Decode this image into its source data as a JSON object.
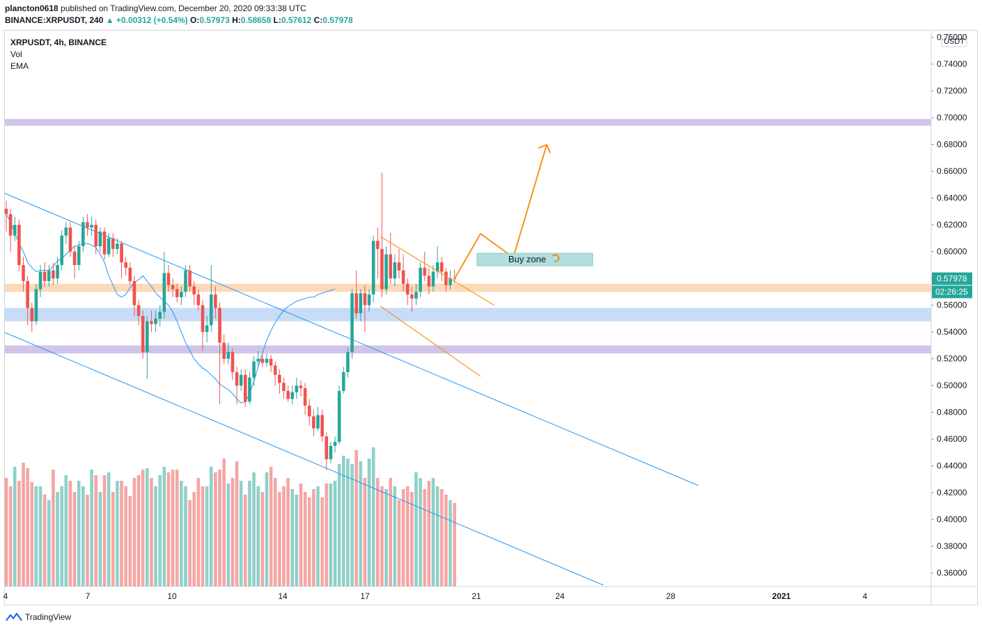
{
  "header": {
    "author": "plancton0618",
    "published": "published on TradingView.com, December 20, 2020 09:33:38 UTC",
    "symbol_line": "BINANCE:XRPUSDT, 240",
    "change": "▲ +0.00312 (+0.54%)",
    "o_label": "O:",
    "o": "0.57973",
    "h_label": "H:",
    "h": "0.58658",
    "l_label": "L:",
    "l": "0.57612",
    "c_label": "C:",
    "c": "0.57978"
  },
  "legend": {
    "symbol": "XRPUSDT, 4h, BINANCE",
    "vol": "Vol",
    "ema": "EMA"
  },
  "footer": {
    "brand": "TradingView"
  },
  "colors": {
    "up": "#26a69a",
    "down": "#ef5350",
    "up_vol": "#8fd0ca",
    "down_vol": "#f4a6a4",
    "trend": "#2196f3",
    "orange": "#f7931a",
    "purple_zone": "#d1c4e9",
    "orange_zone": "#fcd9b8",
    "blue_zone": "#c9dcf7",
    "buy_zone": "#b2dfdb"
  },
  "chart_data": {
    "type": "candlestick",
    "currency": "USDT",
    "ylim": [
      0.35,
      0.765
    ],
    "y_ticks": [
      "0.76000",
      "0.74000",
      "0.72000",
      "0.70000",
      "0.68000",
      "0.66000",
      "0.64000",
      "0.62000",
      "0.60000",
      "0.58000",
      "0.56000",
      "0.54000",
      "0.52000",
      "0.50000",
      "0.48000",
      "0.46000",
      "0.44000",
      "0.42000",
      "0.40000",
      "0.38000",
      "0.36000"
    ],
    "x_ticks": [
      "4",
      "7",
      "10",
      "14",
      "17",
      "21",
      "24",
      "28",
      "2021",
      "4"
    ],
    "last_price": "0.57978",
    "countdown": "02:26:25",
    "candles": [
      [
        0.632,
        0.628,
        0.638,
        0.615
      ],
      [
        0.628,
        0.612,
        0.632,
        0.6
      ],
      [
        0.612,
        0.62,
        0.626,
        0.608
      ],
      [
        0.62,
        0.59,
        0.624,
        0.585
      ],
      [
        0.59,
        0.578,
        0.596,
        0.57
      ],
      [
        0.578,
        0.558,
        0.582,
        0.545
      ],
      [
        0.558,
        0.548,
        0.562,
        0.54
      ],
      [
        0.548,
        0.572,
        0.576,
        0.545
      ],
      [
        0.572,
        0.585,
        0.59,
        0.566
      ],
      [
        0.585,
        0.578,
        0.592,
        0.574
      ],
      [
        0.578,
        0.586,
        0.59,
        0.574
      ],
      [
        0.586,
        0.58,
        0.592,
        0.575
      ],
      [
        0.58,
        0.59,
        0.596,
        0.576
      ],
      [
        0.59,
        0.612,
        0.616,
        0.586
      ],
      [
        0.612,
        0.618,
        0.622,
        0.606
      ],
      [
        0.618,
        0.6,
        0.622,
        0.596
      ],
      [
        0.6,
        0.59,
        0.604,
        0.58
      ],
      [
        0.59,
        0.604,
        0.608,
        0.586
      ],
      [
        0.604,
        0.622,
        0.626,
        0.6
      ],
      [
        0.622,
        0.618,
        0.628,
        0.612
      ],
      [
        0.618,
        0.62,
        0.626,
        0.612
      ],
      [
        0.62,
        0.604,
        0.624,
        0.598
      ],
      [
        0.604,
        0.615,
        0.618,
        0.6
      ],
      [
        0.615,
        0.598,
        0.618,
        0.594
      ],
      [
        0.598,
        0.61,
        0.614,
        0.596
      ],
      [
        0.61,
        0.602,
        0.614,
        0.596
      ],
      [
        0.602,
        0.606,
        0.61,
        0.598
      ],
      [
        0.606,
        0.592,
        0.608,
        0.58
      ],
      [
        0.592,
        0.588,
        0.596,
        0.582
      ],
      [
        0.588,
        0.578,
        0.592,
        0.575
      ],
      [
        0.578,
        0.56,
        0.582,
        0.552
      ],
      [
        0.56,
        0.552,
        0.564,
        0.545
      ],
      [
        0.552,
        0.525,
        0.556,
        0.52
      ],
      [
        0.525,
        0.548,
        0.552,
        0.505
      ],
      [
        0.548,
        0.546,
        0.556,
        0.54
      ],
      [
        0.546,
        0.55,
        0.556,
        0.54
      ],
      [
        0.55,
        0.555,
        0.56,
        0.544
      ],
      [
        0.555,
        0.584,
        0.6,
        0.55
      ],
      [
        0.584,
        0.575,
        0.59,
        0.57
      ],
      [
        0.575,
        0.572,
        0.58,
        0.566
      ],
      [
        0.572,
        0.566,
        0.576,
        0.562
      ],
      [
        0.566,
        0.57,
        0.574,
        0.56
      ],
      [
        0.57,
        0.586,
        0.59,
        0.566
      ],
      [
        0.586,
        0.574,
        0.59,
        0.57
      ],
      [
        0.574,
        0.568,
        0.578,
        0.56
      ],
      [
        0.568,
        0.56,
        0.572,
        0.556
      ],
      [
        0.56,
        0.54,
        0.564,
        0.526
      ],
      [
        0.54,
        0.545,
        0.552,
        0.532
      ],
      [
        0.545,
        0.568,
        0.59,
        0.54
      ],
      [
        0.568,
        0.558,
        0.574,
        0.55
      ],
      [
        0.558,
        0.532,
        0.562,
        0.486
      ],
      [
        0.532,
        0.52,
        0.538,
        0.516
      ],
      [
        0.52,
        0.525,
        0.532,
        0.516
      ],
      [
        0.525,
        0.51,
        0.528,
        0.504
      ],
      [
        0.51,
        0.5,
        0.514,
        0.486
      ],
      [
        0.5,
        0.508,
        0.512,
        0.496
      ],
      [
        0.508,
        0.488,
        0.512,
        0.484
      ],
      [
        0.488,
        0.506,
        0.51,
        0.486
      ],
      [
        0.506,
        0.518,
        0.522,
        0.5
      ],
      [
        0.518,
        0.52,
        0.526,
        0.514
      ],
      [
        0.52,
        0.517,
        0.524,
        0.514
      ],
      [
        0.517,
        0.52,
        0.524,
        0.514
      ],
      [
        0.52,
        0.515,
        0.523,
        0.51
      ],
      [
        0.515,
        0.508,
        0.518,
        0.5
      ],
      [
        0.508,
        0.502,
        0.512,
        0.494
      ],
      [
        0.502,
        0.496,
        0.506,
        0.49
      ],
      [
        0.496,
        0.49,
        0.5,
        0.488
      ],
      [
        0.49,
        0.495,
        0.5,
        0.486
      ],
      [
        0.495,
        0.5,
        0.506,
        0.49
      ],
      [
        0.5,
        0.498,
        0.504,
        0.492
      ],
      [
        0.498,
        0.485,
        0.502,
        0.478
      ],
      [
        0.485,
        0.477,
        0.49,
        0.47
      ],
      [
        0.477,
        0.468,
        0.482,
        0.462
      ],
      [
        0.468,
        0.478,
        0.484,
        0.466
      ],
      [
        0.478,
        0.462,
        0.482,
        0.458
      ],
      [
        0.462,
        0.445,
        0.465,
        0.437
      ],
      [
        0.445,
        0.455,
        0.458,
        0.442
      ],
      [
        0.455,
        0.458,
        0.462,
        0.45
      ],
      [
        0.458,
        0.496,
        0.5,
        0.456
      ],
      [
        0.496,
        0.51,
        0.514,
        0.494
      ],
      [
        0.51,
        0.525,
        0.528,
        0.506
      ],
      [
        0.525,
        0.569,
        0.572,
        0.52
      ],
      [
        0.569,
        0.554,
        0.586,
        0.55
      ],
      [
        0.554,
        0.569,
        0.572,
        0.548
      ],
      [
        0.569,
        0.56,
        0.575,
        0.54
      ],
      [
        0.56,
        0.568,
        0.572,
        0.555
      ],
      [
        0.568,
        0.608,
        0.612,
        0.562
      ],
      [
        0.608,
        0.602,
        0.618,
        0.58
      ],
      [
        0.602,
        0.572,
        0.659,
        0.566
      ],
      [
        0.572,
        0.598,
        0.604,
        0.568
      ],
      [
        0.598,
        0.58,
        0.614,
        0.576
      ],
      [
        0.58,
        0.592,
        0.598,
        0.574
      ],
      [
        0.592,
        0.586,
        0.602,
        0.58
      ],
      [
        0.586,
        0.576,
        0.598,
        0.57
      ],
      [
        0.576,
        0.568,
        0.58,
        0.56
      ],
      [
        0.568,
        0.565,
        0.574,
        0.555
      ],
      [
        0.565,
        0.57,
        0.576,
        0.56
      ],
      [
        0.57,
        0.588,
        0.592,
        0.566
      ],
      [
        0.588,
        0.582,
        0.6,
        0.578
      ],
      [
        0.582,
        0.574,
        0.588,
        0.568
      ],
      [
        0.574,
        0.585,
        0.59,
        0.57
      ],
      [
        0.585,
        0.592,
        0.604,
        0.58
      ],
      [
        0.592,
        0.585,
        0.596,
        0.578
      ],
      [
        0.585,
        0.575,
        0.588,
        0.57
      ],
      [
        0.575,
        0.58,
        0.586,
        0.572
      ],
      [
        0.58,
        0.5798,
        0.5866,
        0.5761
      ]
    ],
    "volume": [
      78,
      72,
      86,
      76,
      89,
      85,
      75,
      72,
      72,
      66,
      62,
      84,
      68,
      72,
      80,
      76,
      68,
      76,
      72,
      66,
      84,
      80,
      68,
      80,
      82,
      68,
      76,
      76,
      72,
      65,
      78,
      80,
      84,
      85,
      78,
      72,
      80,
      86,
      82,
      84,
      84,
      76,
      72,
      62,
      68,
      78,
      72,
      72,
      86,
      82,
      84,
      92,
      74,
      78,
      90,
      76,
      66,
      76,
      82,
      72,
      68,
      82,
      86,
      78,
      68,
      72,
      78,
      70,
      66,
      74,
      68,
      64,
      70,
      72,
      64,
      74,
      74,
      76,
      88,
      94,
      92,
      88,
      98,
      90,
      78,
      92,
      100,
      78,
      72,
      70,
      78,
      72,
      62,
      70,
      72,
      68,
      82,
      78,
      70,
      76,
      78,
      72,
      70,
      66,
      62,
      60
    ],
    "ema": [
      0.628,
      0.622,
      0.614,
      0.606,
      0.6,
      0.592,
      0.588,
      0.585,
      0.586,
      0.586,
      0.586,
      0.589,
      0.593,
      0.595,
      0.598,
      0.601,
      0.604,
      0.605,
      0.606,
      0.606,
      0.605,
      0.603,
      0.598,
      0.592,
      0.582,
      0.575,
      0.568,
      0.566,
      0.568,
      0.573,
      0.577,
      0.579,
      0.582,
      0.578,
      0.574,
      0.569,
      0.566,
      0.563,
      0.56,
      0.555,
      0.548,
      0.54,
      0.532,
      0.526,
      0.52,
      0.516,
      0.513,
      0.511,
      0.508,
      0.505,
      0.501,
      0.499,
      0.497,
      0.494,
      0.49,
      0.487,
      0.488,
      0.494,
      0.503,
      0.514,
      0.524,
      0.534,
      0.541,
      0.547,
      0.552,
      0.556,
      0.559,
      0.561,
      0.563,
      0.564,
      0.565,
      0.566,
      0.566,
      0.568,
      0.569,
      0.57,
      0.571,
      0.572
    ],
    "ema_start_index": 28,
    "annotations": {
      "buy_zone_label": "Buy zone",
      "zones": [
        {
          "name": "resistance-0.70",
          "y0": 0.694,
          "y1": 0.699,
          "color": "#d1c4e9"
        },
        {
          "name": "support-orange",
          "y0": 0.57,
          "y1": 0.576,
          "color": "#fcd9b8"
        },
        {
          "name": "support-blue",
          "y0": 0.548,
          "y1": 0.558,
          "color": "#c9dcf7"
        },
        {
          "name": "support-0.525",
          "y0": 0.524,
          "y1": 0.53,
          "color": "#d1c4e9"
        }
      ],
      "buy_zone": {
        "x0": 0.515,
        "x1": 0.64,
        "y0": 0.596,
        "y1": 0.606
      }
    }
  }
}
